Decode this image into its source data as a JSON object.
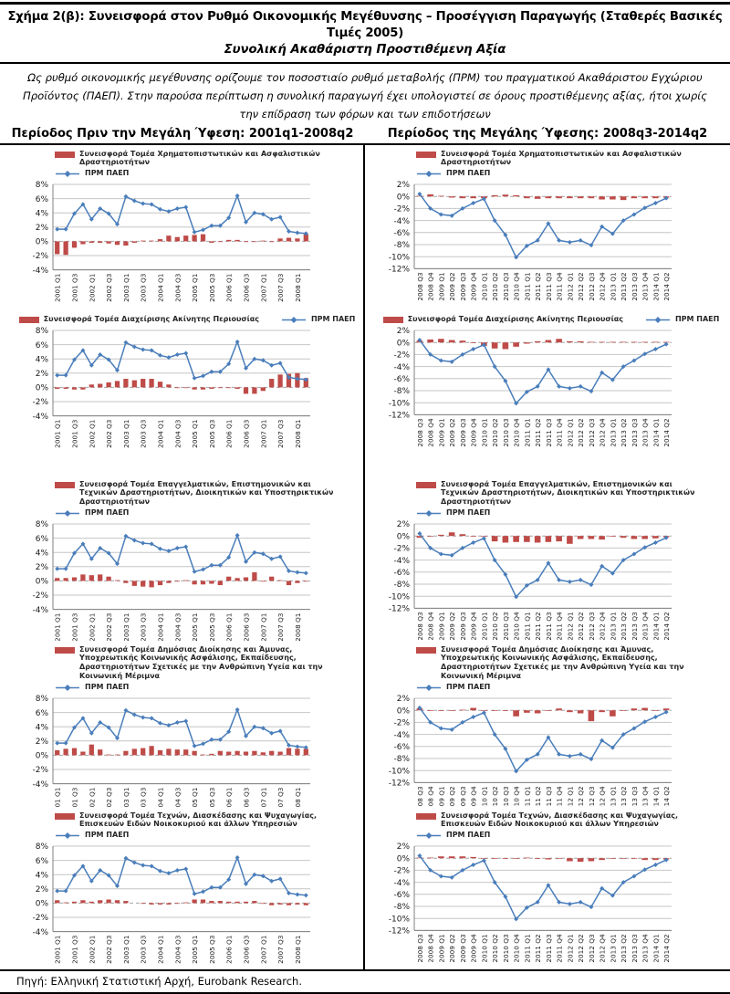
{
  "header": {
    "title_line1": "Σχήμα 2(β): Συνεισφορά στον Ρυθμό Οικονομικής Μεγέθυνσης – Προσέγγιση Παραγωγής (Σταθερές Βασικές Τιμές 2005)",
    "title_line2": "Συνολική Ακαθάριστη Προστιθέμενη Αξία",
    "note": "Ως ρυθμό οικονομικής μεγέθυνσης ορίζουμε τον ποσοστιαίο ρυθμό μεταβολής (ΠΡΜ) του πραγματικού Ακαθάριστου Εγχώριου Προϊόντος (ΠΑΕΠ). Στην παρούσα περίπτωση η συνολική παραγωγή έχει υπολογιστεί σε όρους προστιθέμενης αξίας, ήτοι χωρίς την επίδραση των φόρων και των επιδοτήσεων",
    "col_left": "Περίοδος Πριν την Μεγάλη Ύφεση: 2001q1-2008q2",
    "col_right": "Περίοδος της Μεγάλης Ύφεσης: 2008q3-2014q2"
  },
  "footer": {
    "source": "Πηγή: Ελληνική Στατιστική Αρχή, Eurobank Research."
  },
  "colors": {
    "bar_red": "#BE4B48",
    "line_blue": "#4A7EBB",
    "grid": "#C6C6C6",
    "zero_line": "#A6A6A6",
    "axis": "#808080"
  },
  "chart_data": [
    {
      "column_title": "Περίοδος Πριν την Μεγάλη Ύφεση: 2001q1-2008q2",
      "type": "bar+line",
      "ylabel_format": "percent",
      "ylim": [
        -4,
        8
      ],
      "ytick_step": 2,
      "x_label_every": 2,
      "categories": [
        "2001 Q1",
        "2001 Q2",
        "2001 Q3",
        "2001 Q4",
        "2002 Q1",
        "2002 Q2",
        "2002 Q3",
        "2002 Q4",
        "2003 Q1",
        "2003 Q2",
        "2003 Q3",
        "2003 Q4",
        "2004 Q1",
        "2004 Q2",
        "2004 Q3",
        "2004 Q4",
        "2005 Q1",
        "2005 Q2",
        "2005 Q3",
        "2005 Q4",
        "2006 Q1",
        "2006 Q2",
        "2006 Q3",
        "2006 Q4",
        "2007 Q1",
        "2007 Q2",
        "2007 Q3",
        "2007 Q4",
        "2008 Q1",
        "2008 Q2"
      ],
      "line_series": {
        "name": "ΠΡΜ ΠΑΕΠ",
        "values": [
          1.7,
          1.7,
          3.9,
          5.2,
          3.1,
          4.6,
          3.9,
          2.4,
          6.3,
          5.7,
          5.3,
          5.2,
          4.5,
          4.2,
          4.6,
          4.8,
          1.3,
          1.6,
          2.2,
          2.2,
          3.3,
          6.4,
          2.7,
          4.0,
          3.8,
          3.1,
          3.4,
          1.4,
          1.2,
          1.1
        ]
      },
      "bar_series": [
        {
          "name": "Συνεισφορά Τομέα Χρηματοπιστωτικών και Ασφαλιστικών Δραστηριοτήτων",
          "values": [
            -1.8,
            -1.9,
            -0.9,
            -0.4,
            -0.2,
            -0.2,
            -0.3,
            -0.5,
            -0.6,
            -0.2,
            0.1,
            0.1,
            0.3,
            0.8,
            0.6,
            0.8,
            0.9,
            1.0,
            -0.2,
            -0.1,
            0.2,
            0.2,
            -0.1,
            -0.1,
            0.1,
            -0.1,
            0.4,
            0.5,
            0.4,
            1.0
          ]
        },
        {
          "name": "Συνεισφορά Τομέα  Διαχείρισης Ακίνητης Περιουσίας",
          "values": [
            -0.2,
            -0.2,
            -0.3,
            -0.3,
            0.4,
            0.5,
            0.7,
            0.9,
            1.2,
            1.0,
            1.2,
            1.2,
            0.8,
            0.4,
            -0.1,
            -0.1,
            -0.3,
            -0.3,
            -0.2,
            -0.1,
            -0.1,
            -0.2,
            -0.9,
            -0.9,
            -0.5,
            1.2,
            1.8,
            1.9,
            2.0,
            1.3
          ]
        },
        {
          "name": "Συνεισφορά Τομέα Επαγγελματικών, Επιστημονικών και Τεχνικών Δραστηριοτήτων, Διοικητικών και Υποστηρικτικών Δραστηριοτήτων",
          "values": [
            0.4,
            0.4,
            0.5,
            0.9,
            0.8,
            0.9,
            0.6,
            0.1,
            -0.3,
            -0.7,
            -0.8,
            -0.9,
            -0.6,
            -0.3,
            -0.1,
            0.1,
            -0.5,
            -0.5,
            -0.4,
            -0.6,
            0.6,
            0.4,
            0.5,
            1.2,
            -0.1,
            0.6,
            0.1,
            -0.6,
            -0.3,
            -0.1
          ]
        },
        {
          "name": "Συνεισφορά Τομέα Δημόσιας Διοίκησης και Άμυνας, Υποχρεωτικής Κοινωνικής Ασφάλισης, Εκπαίδευσης, Δραστηριοτήτων Σχετικές με την Ανθρώπινη Υγεία και την Κοινωνική Μέριμνα",
          "values": [
            0.7,
            0.9,
            1.0,
            0.5,
            1.5,
            0.8,
            0.1,
            0.1,
            0.6,
            0.9,
            1.0,
            1.3,
            0.7,
            0.9,
            0.8,
            0.8,
            0.6,
            0.1,
            0.2,
            0.6,
            0.5,
            0.6,
            0.5,
            0.6,
            0.4,
            0.6,
            0.5,
            1.0,
            0.9,
            0.9
          ]
        },
        {
          "name": "Συνεισφορά Τομέα Τεχνών, Διασκέδασης και Ψυχαγωγίας, Επισκευών Ειδών Νοικοκυριού και άλλων Υπηρεσιών",
          "values": [
            0.4,
            0.1,
            0.2,
            0.4,
            0.2,
            0.4,
            0.5,
            0.4,
            0.3,
            0.0,
            -0.1,
            -0.2,
            -0.2,
            -0.2,
            -0.1,
            0.1,
            0.5,
            0.5,
            0.3,
            0.3,
            0.2,
            0.2,
            0.2,
            0.3,
            -0.1,
            -0.3,
            -0.2,
            -0.3,
            -0.2,
            -0.3
          ]
        }
      ]
    },
    {
      "column_title": "Περίοδος της Μεγάλης Ύφεσης: 2008q3-2014q2",
      "type": "bar+line",
      "ylabel_format": "percent",
      "ylim": [
        -12,
        2
      ],
      "ytick_step": 2,
      "x_label_every": 1,
      "categories": [
        "2008 Q3",
        "2008 Q4",
        "2009 Q1",
        "2009 Q2",
        "2009 Q3",
        "2009 Q4",
        "2010 Q1",
        "2010 Q2",
        "2010 Q3",
        "2010 Q4",
        "2011 Q1",
        "2011 Q2",
        "2011 Q3",
        "2011 Q4",
        "2012 Q1",
        "2012 Q2",
        "2012 Q3",
        "2012 Q4",
        "2013 Q1",
        "2013 Q2",
        "2013 Q3",
        "2013 Q4",
        "2014 Q1",
        "2014 Q2"
      ],
      "line_series": {
        "name": "ΠΡΜ ΠΑΕΠ",
        "values": [
          0.4,
          -2.0,
          -3.0,
          -3.2,
          -2.0,
          -1.1,
          -0.4,
          -4.0,
          -6.4,
          -10.1,
          -8.2,
          -7.3,
          -4.5,
          -7.3,
          -7.6,
          -7.3,
          -8.1,
          -5.0,
          -6.2,
          -4.0,
          -3.0,
          -1.9,
          -1.1,
          -0.3
        ]
      },
      "bar_series": [
        {
          "name": "Συνεισφορά Τομέα Χρηματοπιστωτικών και Ασφαλιστικών Δραστηριοτήτων",
          "values": [
            0.1,
            0.35,
            0.1,
            -0.2,
            -0.3,
            -0.3,
            -0.3,
            0.2,
            0.3,
            0.2,
            -0.3,
            -0.4,
            -0.3,
            -0.3,
            -0.3,
            -0.3,
            -0.3,
            -0.5,
            -0.5,
            -0.6,
            -0.3,
            -0.3,
            -0.3,
            -0.2
          ]
        },
        {
          "name": "Συνεισφορά Τομέα  Διαχείρισης Ακίνητης Περιουσίας",
          "values": [
            0.3,
            0.5,
            0.6,
            0.4,
            0.3,
            -0.1,
            -0.6,
            -1.0,
            -1.1,
            -0.7,
            -0.2,
            0.2,
            0.4,
            0.6,
            0.2,
            0.2,
            0.1,
            0.1,
            0.1,
            0.1,
            0.1,
            0.1,
            0.1,
            0.1
          ]
        },
        {
          "name": "Συνεισφορά Τομέα Επαγγελματικών, Επιστημονικών και Τεχνικών Δραστηριοτήτων, Διοικητικών και Υποστηρικτικών Δραστηριοτήτων",
          "values": [
            -0.3,
            -0.1,
            0.2,
            0.6,
            0.3,
            -0.1,
            -0.1,
            -0.9,
            -1.1,
            -1.0,
            -1.0,
            -1.1,
            -1.0,
            -0.9,
            -1.3,
            -0.5,
            -0.5,
            -0.6,
            -0.1,
            -0.3,
            -0.5,
            -0.5,
            -0.4,
            -0.2
          ]
        },
        {
          "name": "Συνεισφορά Τομέα Δημόσιας Διοίκησης και Άμυνας, Υποχρεωτικής Κοινωνικής Ασφάλισης, Εκπαίδευσης, Δραστηριοτήτων Σχετικές με την Ανθρώπινη Υγεία και την Κοινωνική Μέριμνα",
          "values": [
            0.3,
            -0.1,
            -0.1,
            -0.1,
            0.1,
            0.4,
            -0.1,
            -0.1,
            -0.1,
            -1.0,
            -0.4,
            -0.5,
            -0.1,
            0.3,
            -0.3,
            -0.5,
            -1.8,
            -0.3,
            -1.0,
            -0.1,
            0.3,
            0.4,
            -0.1,
            0.3
          ]
        },
        {
          "name": "Συνεισφορά Τομέα Τεχνών, Διασκέδασης και Ψυχαγωγίας, Επισκευών Ειδών Νοικοκυριού και άλλων Υπηρεσιών",
          "values": [
            0.1,
            0.1,
            0.3,
            0.3,
            0.3,
            0.2,
            -0.1,
            -0.1,
            -0.1,
            -0.1,
            0.1,
            -0.1,
            -0.2,
            -0.1,
            -0.5,
            -0.6,
            -0.5,
            -0.3,
            -0.1,
            -0.1,
            -0.1,
            -0.3,
            -0.3,
            -0.2
          ]
        }
      ]
    }
  ]
}
